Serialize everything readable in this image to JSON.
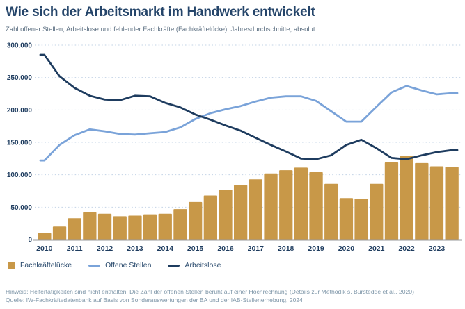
{
  "header": {
    "title": "Wie sich der Arbeitsmarkt im Handwerk entwickelt",
    "subtitle": "Zahl offener Stellen, Arbeitslose und fehlender Fachkräfte (Fachkräftelücke), Jahresdurchschnitte, absolut"
  },
  "chart_data": {
    "type": "combo",
    "x_years": [
      "2010",
      "2011",
      "2012",
      "2013",
      "2014",
      "2015",
      "2016",
      "2017",
      "2018",
      "2019",
      "2020",
      "2021",
      "2022",
      "2023"
    ],
    "points_per_year": 2,
    "ylim": [
      0,
      300000
    ],
    "y_ticks": [
      {
        "value": 0,
        "label": "0"
      },
      {
        "value": 50000,
        "label": "50.000"
      },
      {
        "value": 100000,
        "label": "100.000"
      },
      {
        "value": 150000,
        "label": "150.000"
      },
      {
        "value": 200000,
        "label": "200.000"
      },
      {
        "value": 250000,
        "label": "250.000"
      },
      {
        "value": 300000,
        "label": "300.000"
      }
    ],
    "grid": "dotted horizontal lines, no vertical grid, solid gray zero baseline",
    "legend_position": "bottom-left",
    "series": [
      {
        "name": "Fachkräftelücke",
        "type": "bar",
        "color": "#c89848",
        "values": [
          10000,
          20000,
          33000,
          42000,
          40000,
          36000,
          37000,
          39000,
          40000,
          47000,
          58000,
          68000,
          77000,
          84000,
          93000,
          102000,
          107000,
          111000,
          104000,
          86000,
          64000,
          63000,
          86000,
          119000,
          129000,
          118000,
          113000,
          112000
        ]
      },
      {
        "name": "Offene Stellen",
        "type": "line",
        "color": "#7aa3d9",
        "values": [
          122000,
          146000,
          161000,
          170000,
          167000,
          163000,
          162000,
          164000,
          166000,
          173000,
          186000,
          195000,
          201000,
          206000,
          213000,
          219000,
          221000,
          221000,
          214000,
          198000,
          182000,
          182000,
          205000,
          227000,
          237000,
          230000,
          224000,
          226000
        ]
      },
      {
        "name": "Arbeitslose",
        "type": "line",
        "color": "#1e3c5f",
        "values": [
          285000,
          252000,
          234000,
          222000,
          216000,
          215000,
          222000,
          221000,
          211000,
          204000,
          193000,
          185000,
          176000,
          168000,
          157000,
          146000,
          136000,
          125000,
          124000,
          130000,
          146000,
          154000,
          141000,
          126000,
          124000,
          130000,
          135000,
          138000
        ]
      }
    ]
  },
  "legend": {
    "items": [
      {
        "label": "Fachkräftelücke",
        "swatch": "square",
        "color": "#c89848"
      },
      {
        "label": "Offene Stellen",
        "swatch": "line",
        "color": "#7aa3d9"
      },
      {
        "label": "Arbeitslose",
        "swatch": "line",
        "color": "#1e3c5f"
      }
    ]
  },
  "footer": {
    "hinweis": "Hinweis: Helfertätigkeiten sind nicht enthalten. Die Zahl der offenen Stellen beruht auf einer Hochrechnung (Details zur Methodik s. Burstedde et al., 2020)",
    "quelle": "Quelle: IW-Fachkräftedatenbank auf Basis von Sonderauswertungen der BA und der IAB-Stellenerhebung, 2024"
  },
  "colors": {
    "title": "#25456a",
    "subtitle": "#5e7183",
    "axis_label": "#1e3c5f",
    "gridline": "#c2d3e6",
    "baseline": "#97999b",
    "footnote": "#7e96a8",
    "background": "#ffffff"
  }
}
